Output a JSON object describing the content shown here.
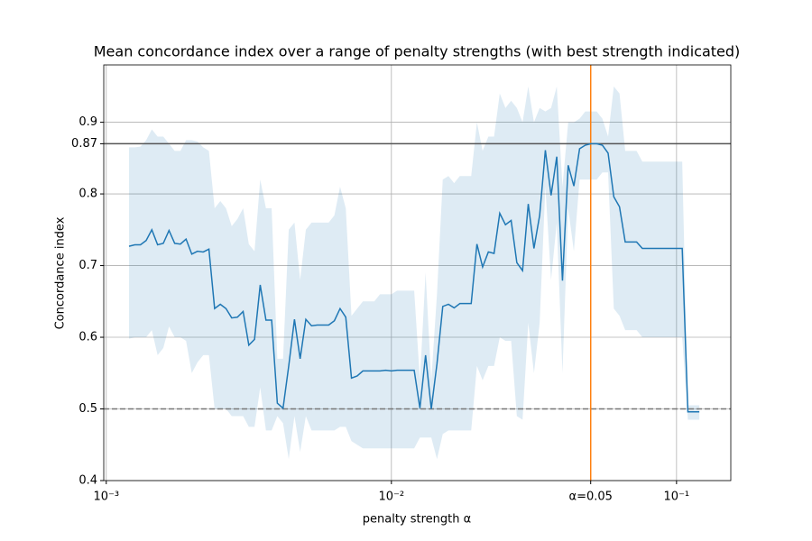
{
  "chart_data": {
    "type": "line",
    "title": "Mean concordance index over a range of penalty strengths (with best strength indicated)",
    "xlabel": "penalty strength α",
    "ylabel": "Concordance index",
    "xscale": "log",
    "grid": true,
    "color": "#1f77b4",
    "band_color": "#1f77b4",
    "xlim": [
      0.00098,
      0.155
    ],
    "ylim": [
      0.4,
      0.98
    ],
    "xticks": [
      {
        "value": 0.001,
        "label": "10⁻³"
      },
      {
        "value": 0.01,
        "label": "10⁻²"
      },
      {
        "value": 0.05,
        "label": "α=0.05"
      },
      {
        "value": 0.1,
        "label": "10⁻¹"
      }
    ],
    "yticks": [
      0.4,
      0.5,
      0.6,
      0.7,
      0.8,
      0.87,
      0.9
    ],
    "hlines": [
      {
        "value": 0.87,
        "color": "#555555",
        "style": "solid"
      },
      {
        "value": 0.5,
        "color": "#777777",
        "style": "dashed"
      }
    ],
    "vlines": [
      {
        "value": 0.05,
        "color": "#ff7f0e",
        "style": "solid"
      }
    ],
    "x": [
      0.001202,
      0.001259,
      0.001318,
      0.00138,
      0.001445,
      0.001514,
      0.001585,
      0.00166,
      0.001738,
      0.00182,
      0.001905,
      0.001995,
      0.002089,
      0.002188,
      0.002291,
      0.002399,
      0.002512,
      0.00263,
      0.002754,
      0.002884,
      0.00302,
      0.003162,
      0.003311,
      0.003467,
      0.003631,
      0.003802,
      0.003981,
      0.004169,
      0.004365,
      0.004571,
      0.004786,
      0.005012,
      0.005248,
      0.005495,
      0.005754,
      0.006026,
      0.00631,
      0.006607,
      0.006918,
      0.007244,
      0.007586,
      0.007943,
      0.008318,
      0.00871,
      0.00912,
      0.00955,
      0.01,
      0.01047,
      0.01096,
      0.01148,
      0.01202,
      0.01259,
      0.01318,
      0.0138,
      0.01445,
      0.01514,
      0.01585,
      0.0166,
      0.01738,
      0.0182,
      0.01905,
      0.01995,
      0.02089,
      0.02188,
      0.02291,
      0.02399,
      0.02512,
      0.0263,
      0.02754,
      0.02884,
      0.0302,
      0.03162,
      0.03311,
      0.03467,
      0.03631,
      0.03802,
      0.03981,
      0.04169,
      0.04365,
      0.04571,
      0.04786,
      0.05012,
      0.05248,
      0.05495,
      0.05754,
      0.06026,
      0.0631,
      0.06607,
      0.06918,
      0.07244,
      0.07586,
      0.07943,
      0.08318,
      0.0871,
      0.0912,
      0.0955,
      0.1,
      0.1047,
      0.1096,
      0.1148,
      0.1202
    ],
    "values": [
      0.727,
      0.729,
      0.729,
      0.735,
      0.75,
      0.729,
      0.731,
      0.749,
      0.731,
      0.73,
      0.737,
      0.716,
      0.72,
      0.719,
      0.723,
      0.64,
      0.646,
      0.64,
      0.627,
      0.628,
      0.636,
      0.589,
      0.597,
      0.673,
      0.624,
      0.624,
      0.508,
      0.501,
      0.56,
      0.625,
      0.57,
      0.625,
      0.616,
      0.617,
      0.617,
      0.617,
      0.623,
      0.64,
      0.628,
      0.543,
      0.546,
      0.553,
      0.553,
      0.553,
      0.553,
      0.554,
      0.553,
      0.554,
      0.554,
      0.554,
      0.554,
      0.501,
      0.575,
      0.5,
      0.563,
      0.643,
      0.646,
      0.641,
      0.647,
      0.647,
      0.647,
      0.73,
      0.698,
      0.719,
      0.717,
      0.773,
      0.757,
      0.763,
      0.704,
      0.693,
      0.786,
      0.724,
      0.77,
      0.861,
      0.798,
      0.852,
      0.679,
      0.84,
      0.811,
      0.863,
      0.868,
      0.87,
      0.87,
      0.868,
      0.857,
      0.796,
      0.782,
      0.733,
      0.733,
      0.733,
      0.724,
      0.724,
      0.724,
      0.724,
      0.724,
      0.724,
      0.724,
      0.724,
      0.496,
      0.496,
      0.496
    ],
    "band": {
      "upper": [
        0.865,
        0.865,
        0.866,
        0.875,
        0.89,
        0.88,
        0.88,
        0.87,
        0.86,
        0.86,
        0.875,
        0.875,
        0.873,
        0.865,
        0.86,
        0.78,
        0.79,
        0.78,
        0.755,
        0.765,
        0.78,
        0.73,
        0.72,
        0.82,
        0.78,
        0.78,
        0.57,
        0.57,
        0.75,
        0.76,
        0.68,
        0.75,
        0.76,
        0.76,
        0.76,
        0.76,
        0.77,
        0.81,
        0.78,
        0.63,
        0.64,
        0.65,
        0.65,
        0.65,
        0.66,
        0.66,
        0.66,
        0.665,
        0.665,
        0.665,
        0.665,
        0.54,
        0.69,
        0.54,
        0.66,
        0.82,
        0.825,
        0.815,
        0.825,
        0.825,
        0.825,
        0.9,
        0.86,
        0.88,
        0.88,
        0.94,
        0.92,
        0.93,
        0.92,
        0.9,
        0.95,
        0.9,
        0.92,
        0.915,
        0.92,
        0.95,
        0.81,
        0.9,
        0.9,
        0.905,
        0.915,
        0.915,
        0.915,
        0.905,
        0.88,
        0.95,
        0.94,
        0.86,
        0.86,
        0.86,
        0.845,
        0.845,
        0.845,
        0.845,
        0.845,
        0.845,
        0.845,
        0.845,
        0.505,
        0.505,
        0.505
      ],
      "lower": [
        0.598,
        0.6,
        0.6,
        0.6,
        0.61,
        0.575,
        0.585,
        0.615,
        0.6,
        0.6,
        0.595,
        0.55,
        0.565,
        0.575,
        0.575,
        0.5,
        0.5,
        0.5,
        0.49,
        0.49,
        0.49,
        0.475,
        0.475,
        0.53,
        0.47,
        0.47,
        0.49,
        0.48,
        0.43,
        0.49,
        0.44,
        0.49,
        0.47,
        0.47,
        0.47,
        0.47,
        0.47,
        0.475,
        0.475,
        0.455,
        0.45,
        0.445,
        0.445,
        0.445,
        0.445,
        0.445,
        0.445,
        0.445,
        0.445,
        0.445,
        0.445,
        0.46,
        0.46,
        0.46,
        0.43,
        0.465,
        0.47,
        0.47,
        0.47,
        0.47,
        0.47,
        0.56,
        0.54,
        0.56,
        0.56,
        0.6,
        0.595,
        0.595,
        0.49,
        0.485,
        0.62,
        0.55,
        0.62,
        0.81,
        0.68,
        0.76,
        0.55,
        0.78,
        0.72,
        0.82,
        0.82,
        0.82,
        0.82,
        0.83,
        0.83,
        0.64,
        0.63,
        0.61,
        0.61,
        0.61,
        0.6,
        0.6,
        0.6,
        0.6,
        0.6,
        0.6,
        0.6,
        0.6,
        0.485,
        0.485,
        0.485
      ]
    }
  }
}
